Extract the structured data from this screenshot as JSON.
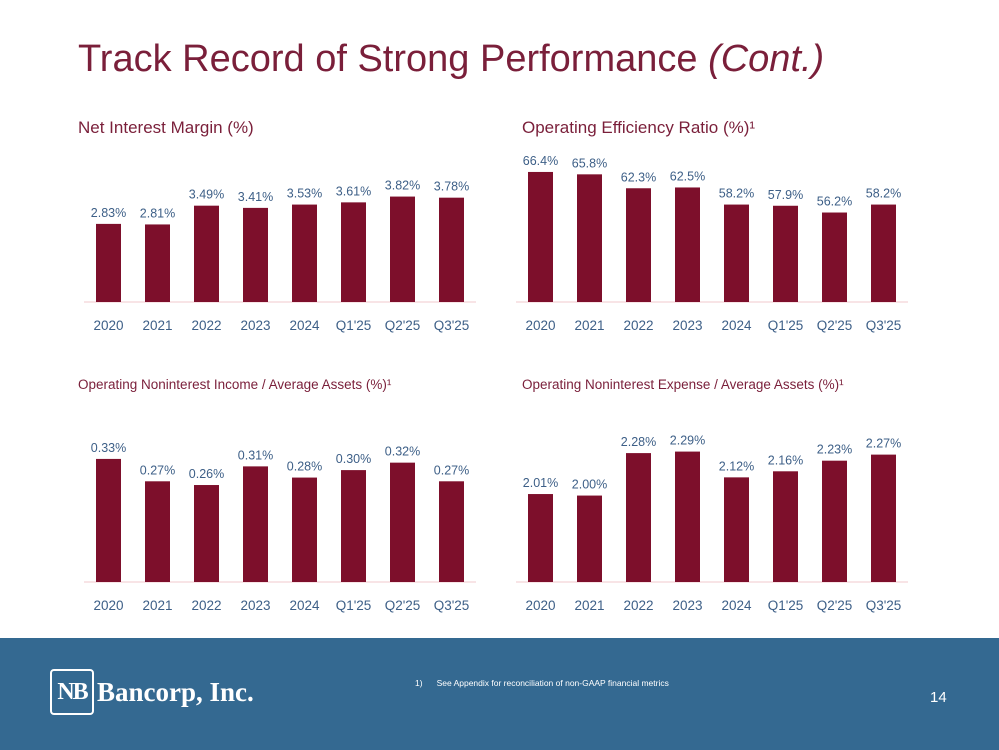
{
  "slide": {
    "title": "Track Record of Strong Performance",
    "title_suffix": "(Cont.)",
    "footnote_number": "1)",
    "footnote_text": "See Appendix for reconciliation of non-GAAP financial metrics",
    "page_number": "14"
  },
  "logo": {
    "monogram": "NB",
    "name": "Bancorp, Inc."
  },
  "colors": {
    "title": "#7a1f3a",
    "bar": "#7d0f2b",
    "label": "#3d5f87",
    "axis": "#f2c8cc",
    "footer": "#346991"
  },
  "chart_titles": {
    "nim": "Net Interest Margin (%)",
    "efficiency": "Operating Efficiency Ratio (%)¹",
    "nonint_income": "Operating Noninterest Income / Average Assets (%)¹",
    "nonint_expense": "Operating Noninterest Expense / Average Assets (%)¹"
  },
  "chart_data": [
    {
      "id": "nim",
      "type": "bar",
      "title": "Net Interest Margin (%)",
      "categories": [
        "2020",
        "2021",
        "2022",
        "2023",
        "2024",
        "Q1'25",
        "Q2'25",
        "Q3'25"
      ],
      "values": [
        2.83,
        2.81,
        3.49,
        3.41,
        3.53,
        3.61,
        3.82,
        3.78
      ],
      "labels": [
        "2.83%",
        "2.81%",
        "3.49%",
        "3.41%",
        "3.53%",
        "3.61%",
        "3.82%",
        "3.78%"
      ],
      "ylim": [
        0,
        5.0
      ]
    },
    {
      "id": "efficiency",
      "type": "bar",
      "title": "Operating Efficiency Ratio (%)¹",
      "categories": [
        "2020",
        "2021",
        "2022",
        "2023",
        "2024",
        "Q1'25",
        "Q2'25",
        "Q3'25"
      ],
      "values": [
        66.4,
        65.8,
        62.3,
        62.5,
        58.2,
        57.9,
        56.2,
        58.2
      ],
      "labels": [
        "66.4%",
        "65.8%",
        "62.3%",
        "62.5%",
        "58.2%",
        "57.9%",
        "56.2%",
        "58.2%"
      ],
      "ylim": [
        33.7,
        68.4
      ]
    },
    {
      "id": "nonint_income",
      "type": "bar",
      "title": "Operating Noninterest Income / Average Assets (%)¹",
      "categories": [
        "2020",
        "2021",
        "2022",
        "2023",
        "2024",
        "Q1'25",
        "Q2'25",
        "Q3'25"
      ],
      "values": [
        0.33,
        0.27,
        0.26,
        0.31,
        0.28,
        0.3,
        0.32,
        0.27
      ],
      "labels": [
        "0.33%",
        "0.27%",
        "0.26%",
        "0.31%",
        "0.28%",
        "0.30%",
        "0.32%",
        "0.27%"
      ],
      "ylim": [
        0,
        0.37
      ]
    },
    {
      "id": "nonint_expense",
      "type": "bar",
      "title": "Operating Noninterest Expense / Average Assets (%)¹",
      "categories": [
        "2020",
        "2021",
        "2022",
        "2023",
        "2024",
        "Q1'25",
        "Q2'25",
        "Q3'25"
      ],
      "values": [
        2.01,
        2.0,
        2.28,
        2.29,
        2.12,
        2.16,
        2.23,
        2.27
      ],
      "labels": [
        "2.01%",
        "2.00%",
        "2.28%",
        "2.29%",
        "2.12%",
        "2.16%",
        "2.23%",
        "2.27%"
      ],
      "ylim": [
        1.43,
        2.34
      ]
    }
  ]
}
